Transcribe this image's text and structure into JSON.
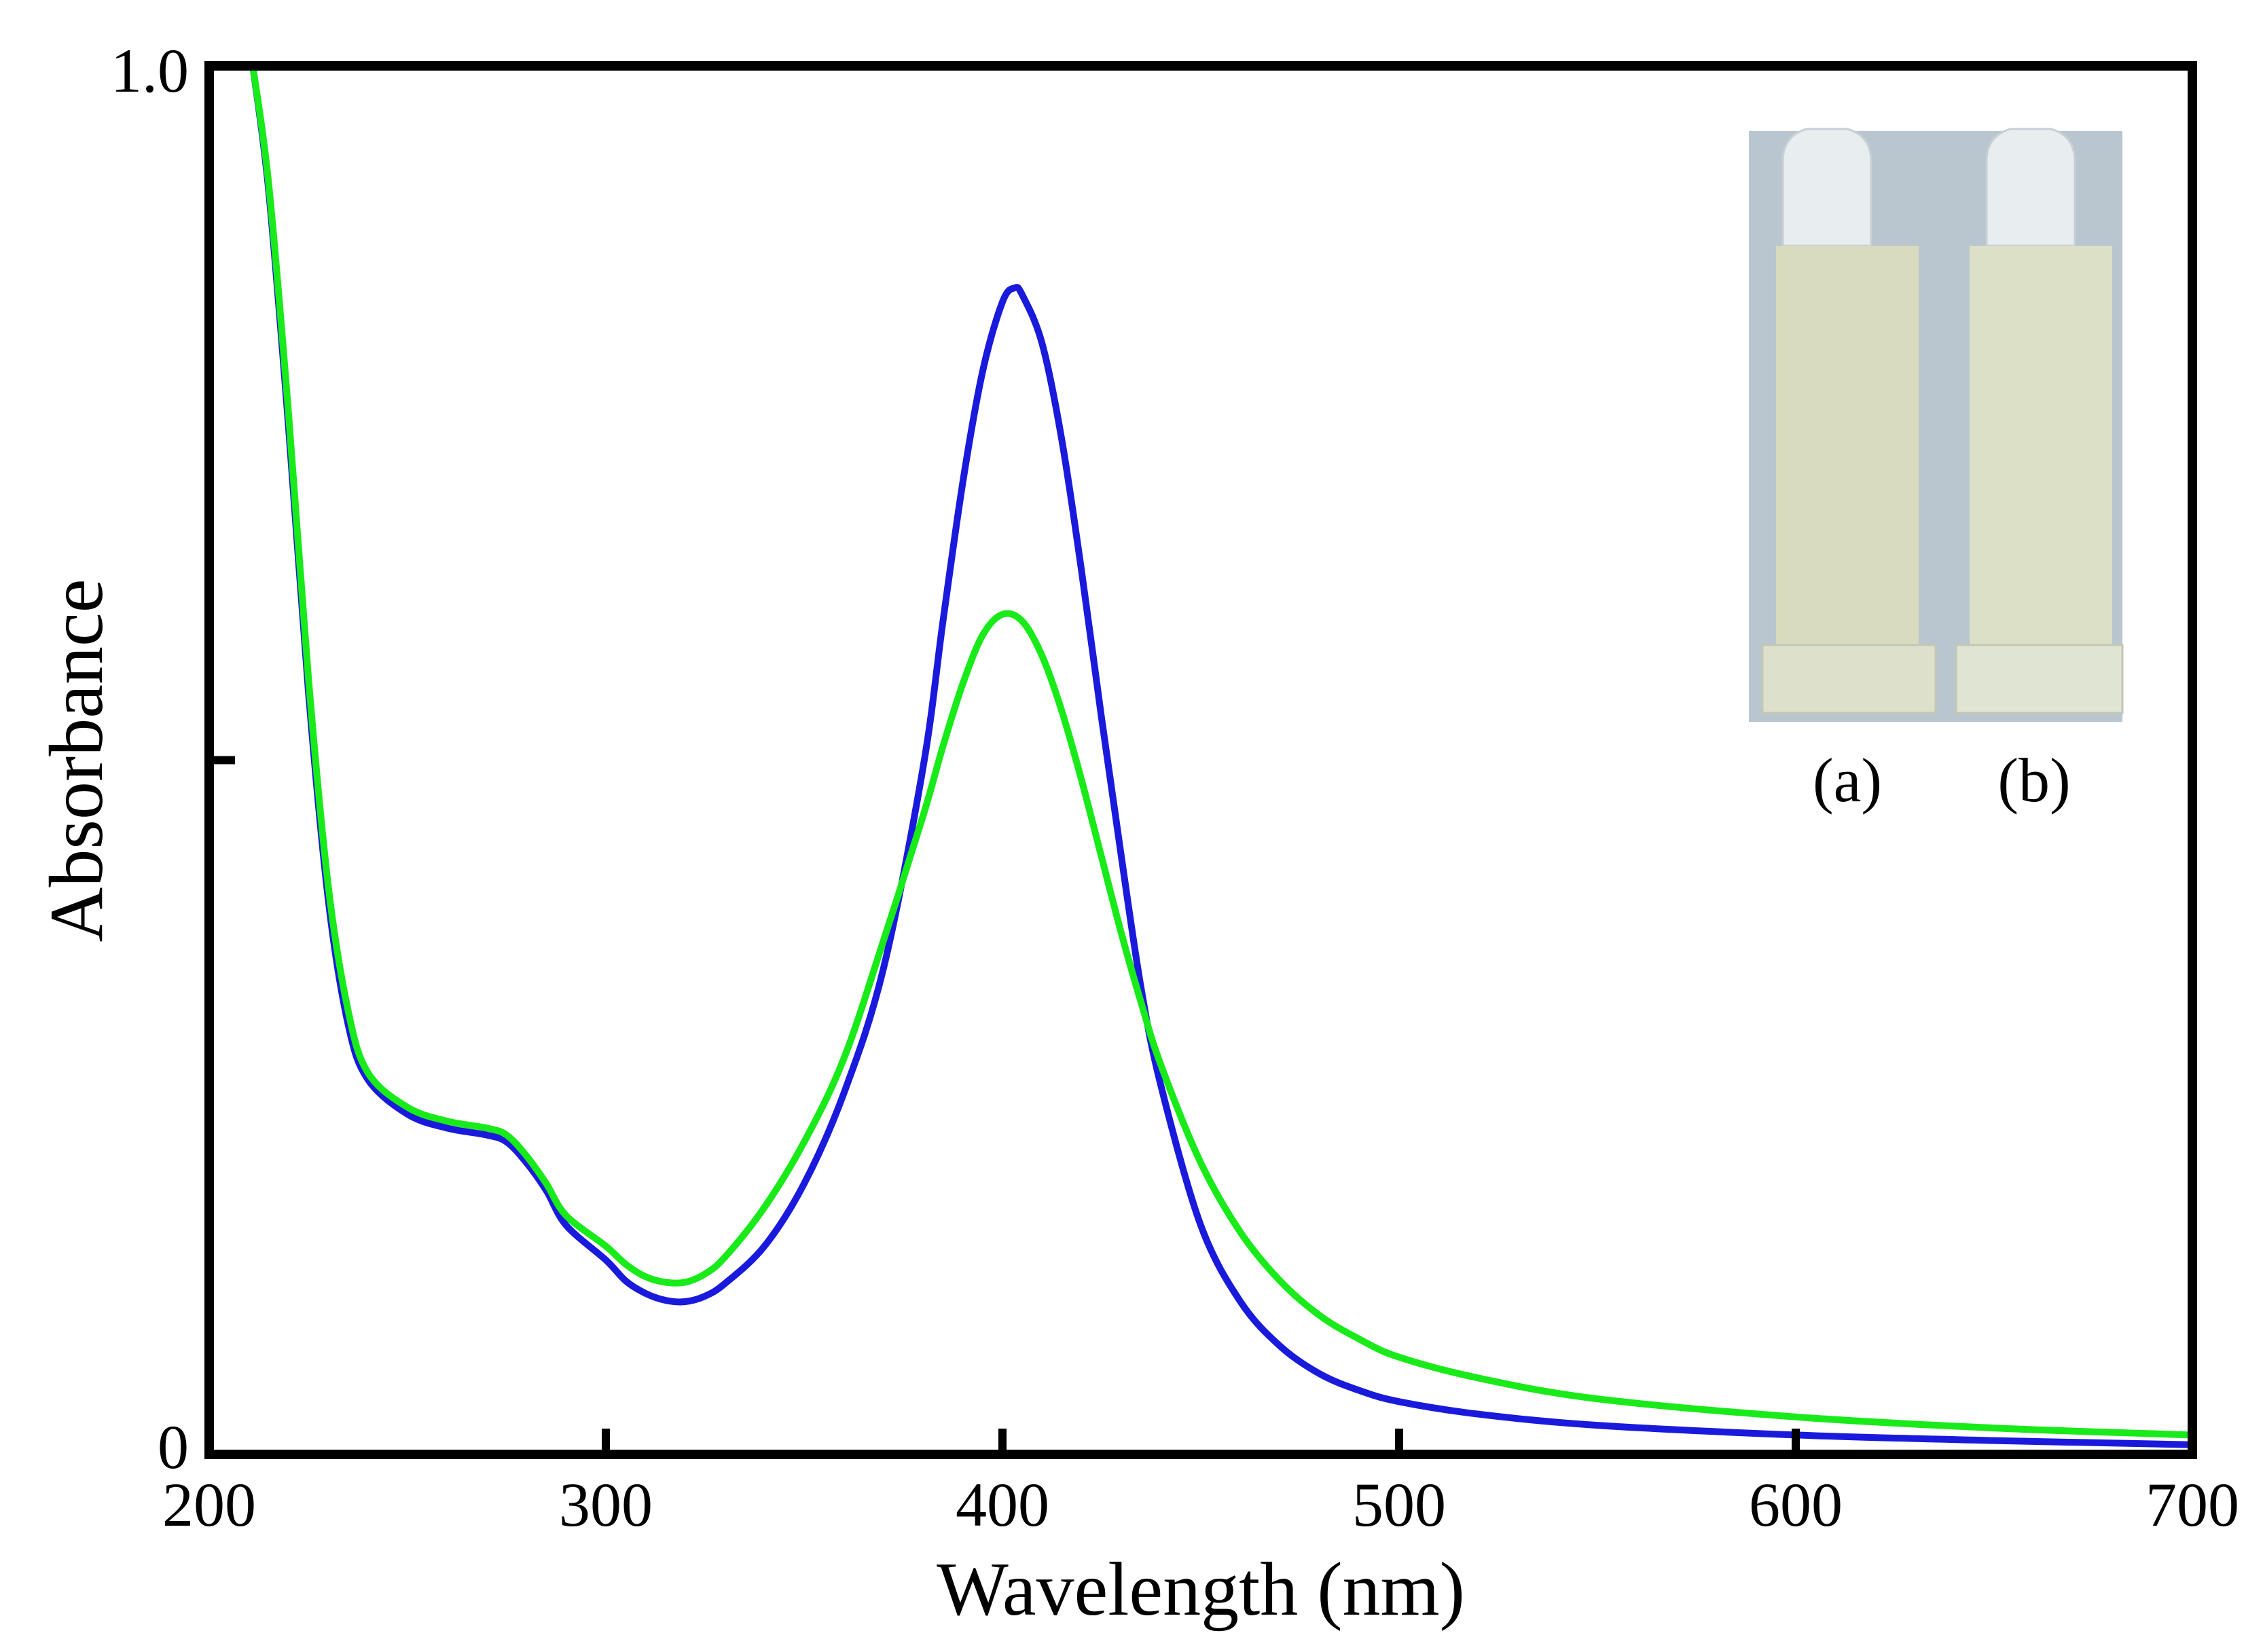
{
  "chart_data": {
    "type": "line",
    "title": "",
    "xlabel": "Wavelength (nm)",
    "ylabel": "Absorbance",
    "xlim": [
      200,
      700
    ],
    "ylim": [
      0,
      1.0
    ],
    "x_ticks": [
      200,
      300,
      400,
      500,
      600,
      700
    ],
    "y_tick_labels": [
      "0",
      "1.0"
    ],
    "y_tick_mark": 0.5,
    "grid": false,
    "series": [
      {
        "name": "(a)",
        "color": "#1a1adc",
        "x": [
          211,
          215,
          220,
          225,
          230,
          235,
          240,
          250,
          260,
          270,
          275,
          280,
          285,
          290,
          300,
          305,
          310,
          315,
          320,
          325,
          330,
          340,
          350,
          360,
          370,
          380,
          385,
          390,
          395,
          400,
          403,
          405,
          410,
          415,
          420,
          425,
          430,
          435,
          440,
          450,
          460,
          470,
          480,
          490,
          500,
          520,
          550,
          600,
          650,
          700
        ],
        "values": [
          1.0,
          0.91,
          0.74,
          0.55,
          0.4,
          0.31,
          0.27,
          0.245,
          0.235,
          0.23,
          0.225,
          0.21,
          0.19,
          0.165,
          0.14,
          0.125,
          0.116,
          0.111,
          0.11,
          0.114,
          0.123,
          0.15,
          0.195,
          0.26,
          0.35,
          0.495,
          0.6,
          0.7,
          0.78,
          0.83,
          0.84,
          0.835,
          0.8,
          0.73,
          0.635,
          0.53,
          0.43,
          0.335,
          0.265,
          0.165,
          0.11,
          0.078,
          0.058,
          0.046,
          0.038,
          0.029,
          0.021,
          0.014,
          0.01,
          0.007
        ]
      },
      {
        "name": "(b)",
        "color": "#19ea19",
        "x": [
          211,
          215,
          220,
          225,
          230,
          235,
          240,
          250,
          260,
          270,
          275,
          280,
          285,
          290,
          300,
          305,
          310,
          315,
          320,
          325,
          330,
          340,
          350,
          360,
          370,
          380,
          385,
          390,
          395,
          400,
          405,
          410,
          415,
          420,
          425,
          430,
          435,
          440,
          450,
          460,
          470,
          480,
          490,
          500,
          520,
          550,
          600,
          650,
          700
        ],
        "values": [
          1.0,
          0.915,
          0.75,
          0.56,
          0.41,
          0.32,
          0.275,
          0.25,
          0.24,
          0.235,
          0.23,
          0.215,
          0.195,
          0.172,
          0.15,
          0.137,
          0.128,
          0.124,
          0.124,
          0.13,
          0.142,
          0.178,
          0.225,
          0.285,
          0.37,
          0.46,
          0.51,
          0.555,
          0.59,
          0.605,
          0.6,
          0.575,
          0.535,
          0.485,
          0.43,
          0.375,
          0.325,
          0.28,
          0.21,
          0.16,
          0.125,
          0.1,
          0.083,
          0.07,
          0.055,
          0.04,
          0.027,
          0.019,
          0.014
        ]
      }
    ],
    "inset": {
      "description_labels": [
        "(a)",
        "(b)"
      ],
      "label_colors": [
        "#1a1adc",
        "#19ea19"
      ]
    }
  }
}
